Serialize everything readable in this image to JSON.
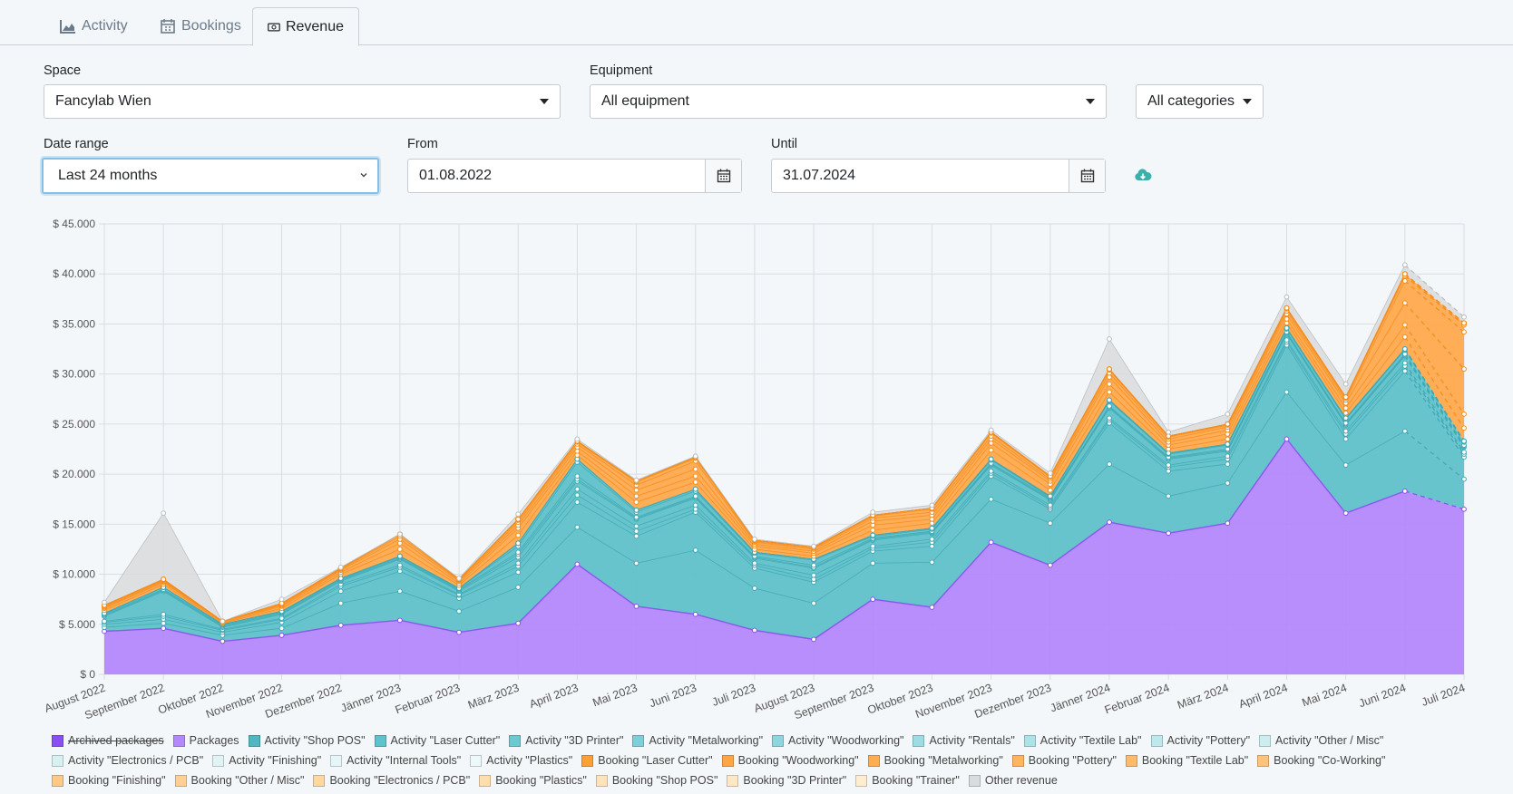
{
  "tabs": [
    {
      "label": "Activity",
      "icon": "area-chart-icon",
      "active": false
    },
    {
      "label": "Bookings",
      "icon": "calendar-icon",
      "active": false
    },
    {
      "label": "Revenue",
      "icon": "money-icon",
      "active": true
    }
  ],
  "filters": {
    "space_label": "Space",
    "space_value": "Fancylab Wien",
    "equipment_label": "Equipment",
    "equipment_value": "All equipment",
    "category_value": "All categories",
    "date_range_label": "Date range",
    "date_range_value": "Last 24 months",
    "from_label": "From",
    "from_value": "01.08.2022",
    "until_label": "Until",
    "until_value": "31.07.2024"
  },
  "colors": {
    "packages": "#b388fb",
    "packages_line": "#8a4ff0",
    "activity": "#5fc1ca",
    "activity_line": "#3fa9b4",
    "booking": "#ffa94d",
    "booking_line": "#f48c1c",
    "other": "#d9dbdd",
    "other_line": "#b9bcbf"
  },
  "chart_data": {
    "type": "area",
    "stacked": true,
    "x": [
      "August 2022",
      "September 2022",
      "Oktober 2022",
      "November 2022",
      "Dezember 2022",
      "Jänner 2023",
      "Februar 2023",
      "März 2023",
      "April 2023",
      "Mai 2023",
      "Juni 2023",
      "Juli 2023",
      "August 2023",
      "September 2023",
      "Oktober 2023",
      "November 2023",
      "Dezember 2023",
      "Jänner 2024",
      "Februar 2024",
      "März 2024",
      "April 2024",
      "Mai 2024",
      "Juni 2024",
      "Juli 2024"
    ],
    "y_ticks": [
      "$ 0",
      "$ 5.000",
      "$ 10.000",
      "$ 15.000",
      "$ 20.000",
      "$ 25.000",
      "$ 30.000",
      "$ 35.000",
      "$ 40.000",
      "$ 45.000"
    ],
    "ylim": [
      0,
      45000
    ],
    "projected_last_segment": true,
    "grid": true,
    "legend_position": "bottom",
    "series": [
      {
        "name": "Archived packages",
        "hidden": true,
        "group": "packages",
        "values": [
          0,
          0,
          0,
          0,
          0,
          0,
          0,
          0,
          0,
          0,
          0,
          0,
          0,
          0,
          0,
          0,
          0,
          0,
          0,
          0,
          0,
          0,
          0,
          0
        ]
      },
      {
        "name": "Packages",
        "group": "packages",
        "values": [
          4300,
          4600,
          3300,
          3900,
          4900,
          5400,
          4200,
          5100,
          11000,
          6800,
          6000,
          4400,
          3500,
          7500,
          6700,
          13200,
          10900,
          15200,
          14100,
          15100,
          23500,
          16100,
          18300,
          16500
        ]
      },
      {
        "name": "Activity \"Shop POS\"",
        "group": "activity",
        "values": [
          400,
          500,
          600,
          700,
          2200,
          2900,
          2100,
          3600,
          3700,
          4300,
          6400,
          4200,
          3600,
          3600,
          4500,
          4300,
          4200,
          5800,
          3700,
          4000,
          4700,
          4800,
          6000,
          3000
        ]
      },
      {
        "name": "Activity \"Laser Cutter\"",
        "group": "activity",
        "values": [
          300,
          400,
          300,
          600,
          1200,
          2000,
          1300,
          1500,
          2500,
          2700,
          3800,
          2000,
          2100,
          1200,
          1600,
          2300,
          1400,
          4100,
          2500,
          1900,
          4700,
          2600,
          6000,
          2200
        ]
      },
      {
        "name": "Activity \"3D Printer\"",
        "group": "activity",
        "values": [
          200,
          300,
          200,
          300,
          500,
          400,
          300,
          600,
          700,
          500,
          300,
          300,
          300,
          300,
          400,
          300,
          200,
          300,
          400,
          500,
          300,
          500,
          500,
          300
        ]
      },
      {
        "name": "Activity \"Metalworking\"",
        "group": "activity",
        "values": [
          100,
          200,
          100,
          100,
          200,
          200,
          100,
          300,
          600,
          500,
          400,
          200,
          400,
          200,
          300,
          200,
          200,
          200,
          200,
          300,
          200,
          300,
          300,
          200
        ]
      },
      {
        "name": "Activity \"Woodworking\"",
        "group": "activity",
        "values": [
          500,
          2300,
          200,
          400,
          300,
          600,
          300,
          600,
          800,
          700,
          700,
          500,
          700,
          600,
          600,
          600,
          500,
          1000,
          600,
          500,
          600,
          600,
          700,
          500
        ]
      },
      {
        "name": "Activity \"Rentals\"",
        "group": "activity",
        "values": [
          100,
          100,
          100,
          100,
          100,
          100,
          100,
          300,
          200,
          100,
          100,
          100,
          100,
          100,
          100,
          100,
          100,
          100,
          100,
          100,
          100,
          100,
          100,
          100
        ]
      },
      {
        "name": "Activity \"Textile Lab\"",
        "group": "activity",
        "values": [
          100,
          100,
          100,
          100,
          100,
          100,
          100,
          200,
          300,
          100,
          100,
          100,
          200,
          100,
          100,
          100,
          100,
          100,
          100,
          100,
          100,
          100,
          100,
          100
        ]
      },
      {
        "name": "Activity \"Pottery\"",
        "group": "activity",
        "values": [
          100,
          200,
          100,
          100,
          100,
          100,
          100,
          600,
          1400,
          500,
          500,
          300,
          500,
          200,
          200,
          300,
          100,
          500,
          300,
          400,
          300,
          400,
          400,
          300
        ]
      },
      {
        "name": "Activity \"Other / Misc\"",
        "group": "activity",
        "values": [
          0,
          0,
          0,
          0,
          0,
          0,
          0,
          300,
          300,
          200,
          200,
          100,
          100,
          100,
          100,
          100,
          100,
          100,
          100,
          100,
          100,
          100,
          100,
          100
        ]
      },
      {
        "name": "Activity \"Electronics / PCB\"",
        "group": "activity",
        "values": [
          0,
          0,
          0,
          0,
          0,
          0,
          0,
          0,
          0,
          0,
          0,
          0,
          0,
          0,
          0,
          0,
          0,
          0,
          0,
          0,
          0,
          0,
          0,
          0
        ]
      },
      {
        "name": "Activity \"Finishing\"",
        "group": "activity",
        "values": [
          0,
          0,
          0,
          0,
          0,
          0,
          0,
          0,
          0,
          0,
          0,
          0,
          0,
          0,
          0,
          0,
          0,
          0,
          0,
          0,
          0,
          0,
          0,
          0
        ]
      },
      {
        "name": "Activity \"Internal Tools\"",
        "group": "activity",
        "values": [
          0,
          0,
          0,
          0,
          0,
          0,
          0,
          0,
          0,
          0,
          0,
          0,
          0,
          0,
          0,
          0,
          0,
          0,
          0,
          0,
          0,
          0,
          0,
          0
        ]
      },
      {
        "name": "Activity \"Plastics\"",
        "group": "activity",
        "values": [
          0,
          0,
          0,
          0,
          0,
          0,
          0,
          0,
          0,
          0,
          0,
          0,
          0,
          0,
          0,
          0,
          0,
          0,
          0,
          0,
          0,
          0,
          0,
          0
        ]
      },
      {
        "name": "Booking \"Laser Cutter\"",
        "group": "booking",
        "values": [
          300,
          300,
          100,
          300,
          400,
          700,
          300,
          800,
          400,
          800,
          700,
          300,
          300,
          500,
          500,
          900,
          600,
          800,
          400,
          500,
          500,
          500,
          1200,
          1300
        ]
      },
      {
        "name": "Booking \"Woodworking\"",
        "group": "booking",
        "values": [
          200,
          200,
          100,
          200,
          200,
          600,
          200,
          700,
          400,
          600,
          600,
          300,
          300,
          500,
          400,
          700,
          600,
          800,
          400,
          500,
          400,
          500,
          1200,
          1400
        ]
      },
      {
        "name": "Booking \"Metalworking\"",
        "group": "booking",
        "values": [
          100,
          100,
          100,
          100,
          200,
          400,
          200,
          300,
          400,
          600,
          700,
          200,
          200,
          400,
          400,
          400,
          300,
          700,
          300,
          400,
          500,
          500,
          2200,
          4500
        ]
      },
      {
        "name": "Booking \"Pottery\"",
        "group": "booking",
        "values": [
          100,
          100,
          0,
          100,
          100,
          300,
          100,
          300,
          300,
          500,
          800,
          200,
          200,
          300,
          300,
          300,
          200,
          400,
          300,
          300,
          300,
          300,
          2200,
          3700
        ]
      },
      {
        "name": "Booking \"Textile Lab\"",
        "group": "booking",
        "values": [
          100,
          100,
          0,
          100,
          100,
          200,
          100,
          200,
          200,
          300,
          300,
          100,
          100,
          200,
          300,
          300,
          200,
          300,
          200,
          200,
          200,
          200,
          500,
          700
        ]
      },
      {
        "name": "Booking \"Co-Working\"",
        "group": "booking",
        "values": [
          0,
          0,
          0,
          0,
          0,
          0,
          0,
          100,
          100,
          100,
          100,
          100,
          100,
          100,
          100,
          100,
          100,
          100,
          100,
          100,
          100,
          100,
          200,
          200
        ]
      },
      {
        "name": "Booking \"Finishing\"",
        "group": "booking",
        "values": [
          0,
          0,
          0,
          0,
          0,
          0,
          0,
          0,
          0,
          0,
          0,
          0,
          0,
          0,
          0,
          0,
          0,
          0,
          0,
          0,
          0,
          0,
          0,
          0
        ]
      },
      {
        "name": "Booking \"Other / Misc\"",
        "group": "booking",
        "values": [
          0,
          0,
          0,
          0,
          0,
          0,
          0,
          0,
          0,
          0,
          0,
          0,
          0,
          0,
          0,
          0,
          0,
          0,
          0,
          0,
          0,
          0,
          0,
          0
        ]
      },
      {
        "name": "Booking \"Electronics / PCB\"",
        "group": "booking",
        "values": [
          0,
          0,
          0,
          0,
          0,
          0,
          0,
          0,
          0,
          0,
          0,
          0,
          0,
          0,
          0,
          0,
          0,
          0,
          0,
          0,
          0,
          0,
          0,
          0
        ]
      },
      {
        "name": "Booking \"Plastics\"",
        "group": "booking",
        "values": [
          0,
          0,
          0,
          0,
          0,
          0,
          0,
          0,
          0,
          0,
          0,
          0,
          0,
          0,
          0,
          0,
          0,
          0,
          0,
          0,
          0,
          0,
          0,
          0
        ]
      },
      {
        "name": "Booking \"Shop POS\"",
        "group": "booking",
        "values": [
          0,
          0,
          0,
          0,
          0,
          0,
          0,
          0,
          0,
          0,
          0,
          0,
          0,
          0,
          0,
          0,
          0,
          0,
          0,
          0,
          0,
          0,
          0,
          0
        ]
      },
      {
        "name": "Booking \"3D Printer\"",
        "group": "booking",
        "values": [
          0,
          0,
          0,
          0,
          0,
          0,
          0,
          0,
          0,
          0,
          0,
          0,
          0,
          0,
          0,
          0,
          0,
          0,
          0,
          0,
          0,
          0,
          0,
          0
        ]
      },
      {
        "name": "Booking \"Trainer\"",
        "group": "booking",
        "values": [
          0,
          0,
          0,
          0,
          0,
          0,
          0,
          0,
          0,
          0,
          0,
          0,
          0,
          0,
          0,
          0,
          0,
          0,
          0,
          0,
          0,
          0,
          0,
          0
        ]
      },
      {
        "name": "Other revenue",
        "group": "other",
        "values": [
          300,
          6600,
          0,
          400,
          100,
          0,
          100,
          500,
          200,
          100,
          100,
          100,
          100,
          300,
          300,
          200,
          300,
          3000,
          400,
          1000,
          1100,
          1300,
          900,
          600
        ]
      }
    ]
  }
}
